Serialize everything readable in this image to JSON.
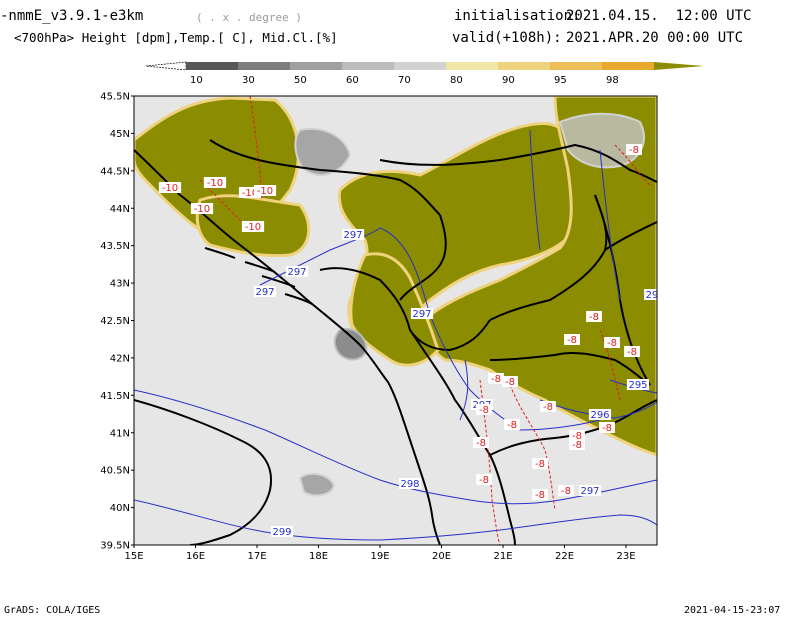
{
  "header": {
    "model": "-nmmE_v3.9.1-e3km",
    "grid_note": "( . x . degree )",
    "fields": "<700hPa> Height [dpm],Temp.[ C], Mid.Cl.[%]",
    "init_label": "initialisation:",
    "init_value": "2021.04.15.  12:00 UTC",
    "valid_label": "valid(+108h):",
    "valid_value": "2021.APR.20 00:00 UTC"
  },
  "colorbar": {
    "labels": [
      "10",
      "30",
      "50",
      "60",
      "70",
      "80",
      "90",
      "95",
      "98"
    ],
    "colors": [
      "#575757",
      "#7d7d7d",
      "#a0a0a0",
      "#bcbcbc",
      "#d2d2d2",
      "#f0e6a8",
      "#efd27c",
      "#ecbe55",
      "#e8a92c",
      "#8c8c00"
    ]
  },
  "map": {
    "lat_labels": [
      "45.5N",
      "45N",
      "44.5N",
      "44N",
      "43.5N",
      "43N",
      "42.5N",
      "42N",
      "41.5N",
      "41N",
      "40.5N",
      "40N",
      "39.5N"
    ],
    "lon_labels": [
      "15E",
      "16E",
      "17E",
      "18E",
      "19E",
      "20E",
      "21E",
      "22E",
      "23E"
    ],
    "colors": {
      "background": "#e6e6e6",
      "cloud_dense": "#8c8c00",
      "cloud_edge": "#efd27c",
      "cloud_gray": "#a6a6a6",
      "height_contour": "#2530c8",
      "temp_contour": "#e02020",
      "border": "#000000"
    },
    "height_labels": [
      "297",
      "297",
      "297",
      "297",
      "297",
      "296",
      "295",
      "298",
      "297",
      "299",
      "29"
    ],
    "temp_labels": [
      "-10",
      "-10",
      "-10",
      "-10",
      "-10",
      "-10",
      "-8",
      "-8",
      "-8",
      "-8",
      "-8",
      "-8",
      "-8",
      "-8",
      "-8",
      "-8",
      "-8",
      "-8",
      "-8",
      "-8",
      "-8",
      "-8",
      "-8",
      "-8"
    ]
  },
  "footer": {
    "left": "GrADS: COLA/IGES",
    "right": "2021-04-15-23:07"
  }
}
